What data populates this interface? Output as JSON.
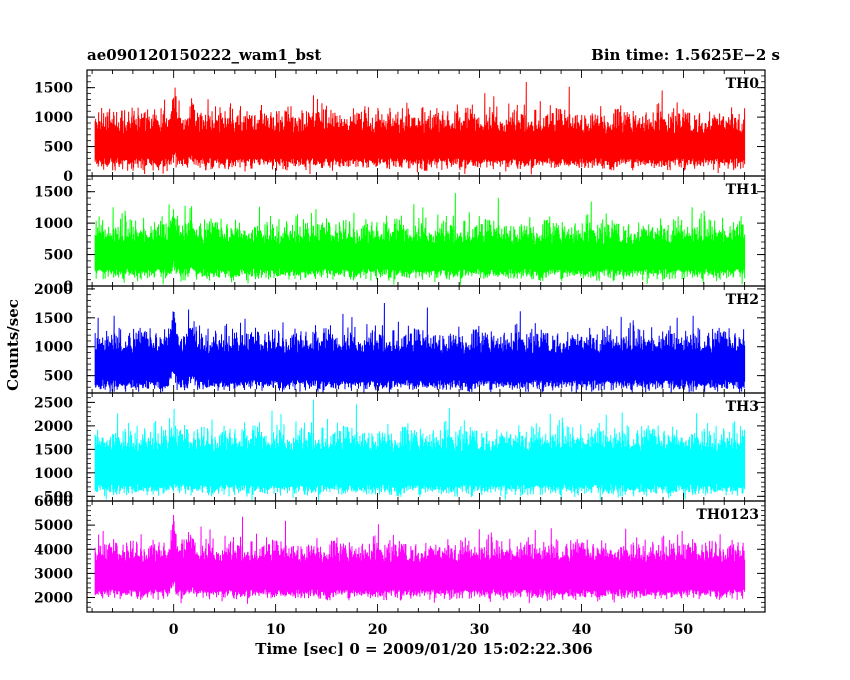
{
  "header": {
    "left": "ae090120150222_wam1_bst",
    "right": "Bin time: 1.5625E−2 s"
  },
  "chart_data": {
    "type": "line",
    "title": "ae090120150222_wam1_bst",
    "subtitle": "Bin time: 1.5625E−2 s",
    "xlabel": "Time [sec] 0 = 2009/01/20 15:02:22.306",
    "ylabel": "Counts/sec",
    "xlim": [
      -8.5,
      58
    ],
    "x_ticks": [
      0,
      10,
      20,
      30,
      40,
      50
    ],
    "x_tick_labels": [
      "0",
      "10",
      "20",
      "30",
      "40",
      "50"
    ],
    "data_x_range": [
      -7.7,
      56
    ],
    "grid": false,
    "legend": "none",
    "series": [
      {
        "name": "TH0",
        "color": "#ff0000",
        "ylim": [
          0,
          1800
        ],
        "ticks": [
          0,
          500,
          1000,
          1500
        ],
        "tick_labels": [
          "0",
          "500",
          "1000",
          "1500"
        ],
        "mean": 720,
        "low": 310,
        "spread": 300,
        "spike_max": 1800,
        "burst": [
          {
            "t": 0.0,
            "amp": 320
          },
          {
            "t": 1.8,
            "amp": 200
          }
        ]
      },
      {
        "name": "TH1",
        "color": "#00ff00",
        "ylim": [
          0,
          1750
        ],
        "ticks": [
          0,
          500,
          1000,
          1500
        ],
        "tick_labels": [
          "0",
          "500",
          "1000",
          "1500"
        ],
        "mean": 660,
        "low": 280,
        "spread": 280,
        "spike_max": 1700,
        "burst": [
          {
            "t": 0.0,
            "amp": 300
          },
          {
            "t": 1.8,
            "amp": 220
          }
        ]
      },
      {
        "name": "TH2",
        "color": "#0000ff",
        "ylim": [
          200,
          2050
        ],
        "ticks": [
          500,
          1000,
          1500,
          2000
        ],
        "tick_labels": [
          "500",
          "1000",
          "1500",
          "2000"
        ],
        "mean": 880,
        "low": 430,
        "spread": 300,
        "spike_max": 2050,
        "burst": [
          {
            "t": 0.0,
            "amp": 500
          },
          {
            "t": 1.8,
            "amp": 300
          }
        ]
      },
      {
        "name": "TH3",
        "color": "#00ffff",
        "ylim": [
          400,
          2700
        ],
        "ticks": [
          500,
          1000,
          1500,
          2000,
          2500
        ],
        "tick_labels": [
          "500",
          "1000",
          "1500",
          "2000",
          "2500"
        ],
        "mean": 1450,
        "low": 760,
        "spread": 380,
        "spike_max": 2650,
        "burst": [
          {
            "t": 0.0,
            "amp": 150
          }
        ]
      },
      {
        "name": "TH0123",
        "color": "#ff00ff",
        "ylim": [
          1400,
          6000
        ],
        "ticks": [
          2000,
          3000,
          4000,
          5000,
          6000
        ],
        "tick_labels": [
          "2000",
          "3000",
          "4000",
          "5000",
          "6000"
        ],
        "mean": 3450,
        "low": 2350,
        "spread": 650,
        "spike_max": 6000,
        "burst": [
          {
            "t": 0.0,
            "amp": 900
          },
          {
            "t": 1.8,
            "amp": 500
          }
        ]
      }
    ]
  }
}
